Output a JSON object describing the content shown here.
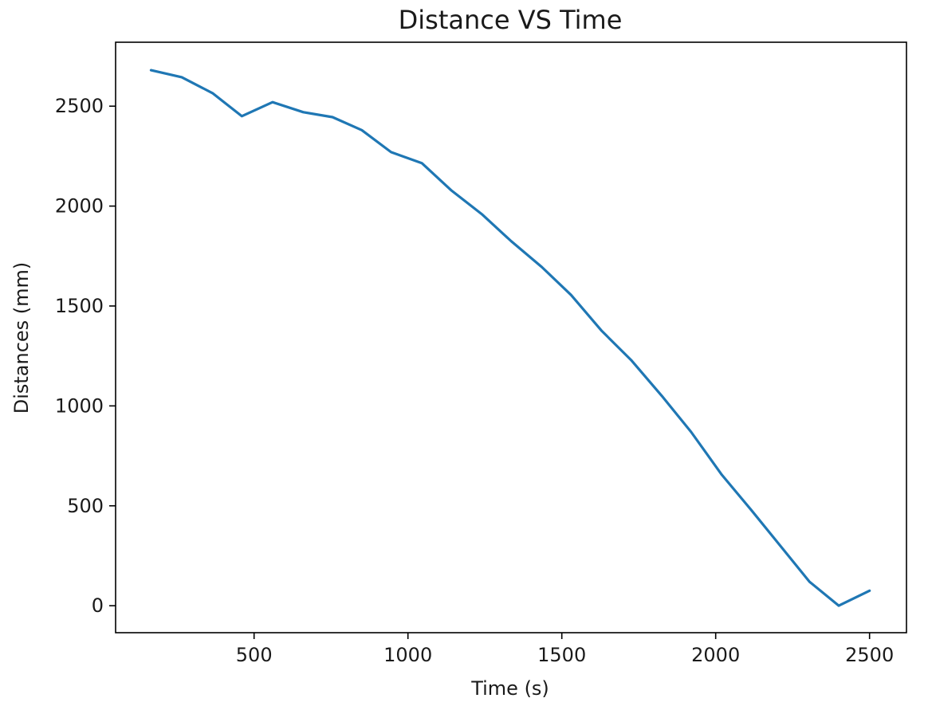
{
  "chart_data": {
    "type": "line",
    "title": "Distance VS Time",
    "xlabel": "Time (s)",
    "ylabel": "Distances (mm)",
    "xlim": [
      50,
      2620
    ],
    "ylim": [
      -135,
      2820
    ],
    "xticks": [
      500,
      1000,
      1500,
      2000,
      2500
    ],
    "yticks": [
      0,
      500,
      1000,
      1500,
      2000,
      2500
    ],
    "grid": false,
    "series": [
      {
        "color": "#1f77b4",
        "x": [
          165,
          265,
          365,
          460,
          560,
          660,
          755,
          850,
          945,
          1045,
          1140,
          1240,
          1335,
          1435,
          1530,
          1630,
          1725,
          1825,
          1920,
          2020,
          2115,
          2210,
          2305,
          2400,
          2500
        ],
        "y": [
          2680,
          2645,
          2565,
          2450,
          2520,
          2470,
          2445,
          2380,
          2270,
          2215,
          2080,
          1960,
          1825,
          1695,
          1555,
          1375,
          1230,
          1050,
          870,
          655,
          480,
          300,
          120,
          0,
          75
        ]
      }
    ]
  }
}
